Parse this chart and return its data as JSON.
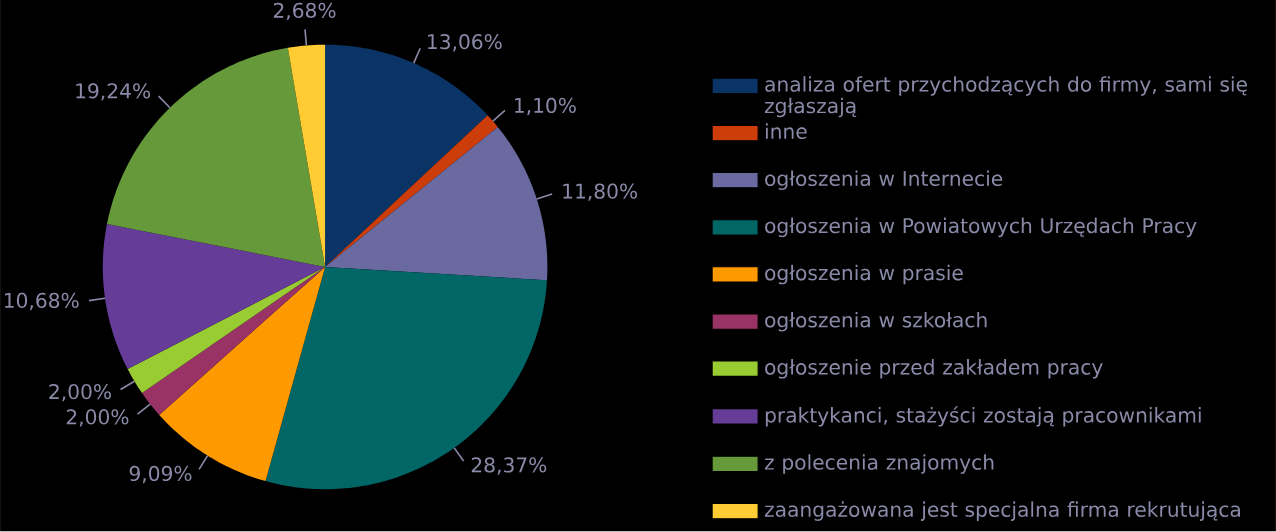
{
  "chart_data": {
    "type": "pie",
    "categories": [
      "analiza ofert przychodzących do firmy, sami się zgłaszają",
      "inne",
      "ogłoszenia w Internecie",
      "ogłoszenia w Powiatowych Urzędach Pracy",
      "ogłoszenia w prasie",
      "ogłoszenia w szkołach",
      "ogłoszenie przed zakładem pracy",
      "praktykanci, stażyści zostają pracownikami",
      "z polecenia znajomych",
      "zaangażowana jest specjalna firma rekrutująca"
    ],
    "values": [
      13.06,
      1.1,
      11.8,
      28.37,
      9.09,
      2.0,
      2.0,
      10.68,
      19.24,
      2.68
    ],
    "value_labels": [
      "13,06%",
      "1,10%",
      "11,80%",
      "28,37%",
      "9,09%",
      "2,00%",
      "2,00%",
      "10,68%",
      "19,24%",
      "2,68%"
    ],
    "colors": [
      "#0b3466",
      "#cc3d0a",
      "#6a6aa0",
      "#006666",
      "#ff9900",
      "#993366",
      "#99cc33",
      "#663c99",
      "#66993a",
      "#ffcc33"
    ],
    "legend": "right"
  }
}
